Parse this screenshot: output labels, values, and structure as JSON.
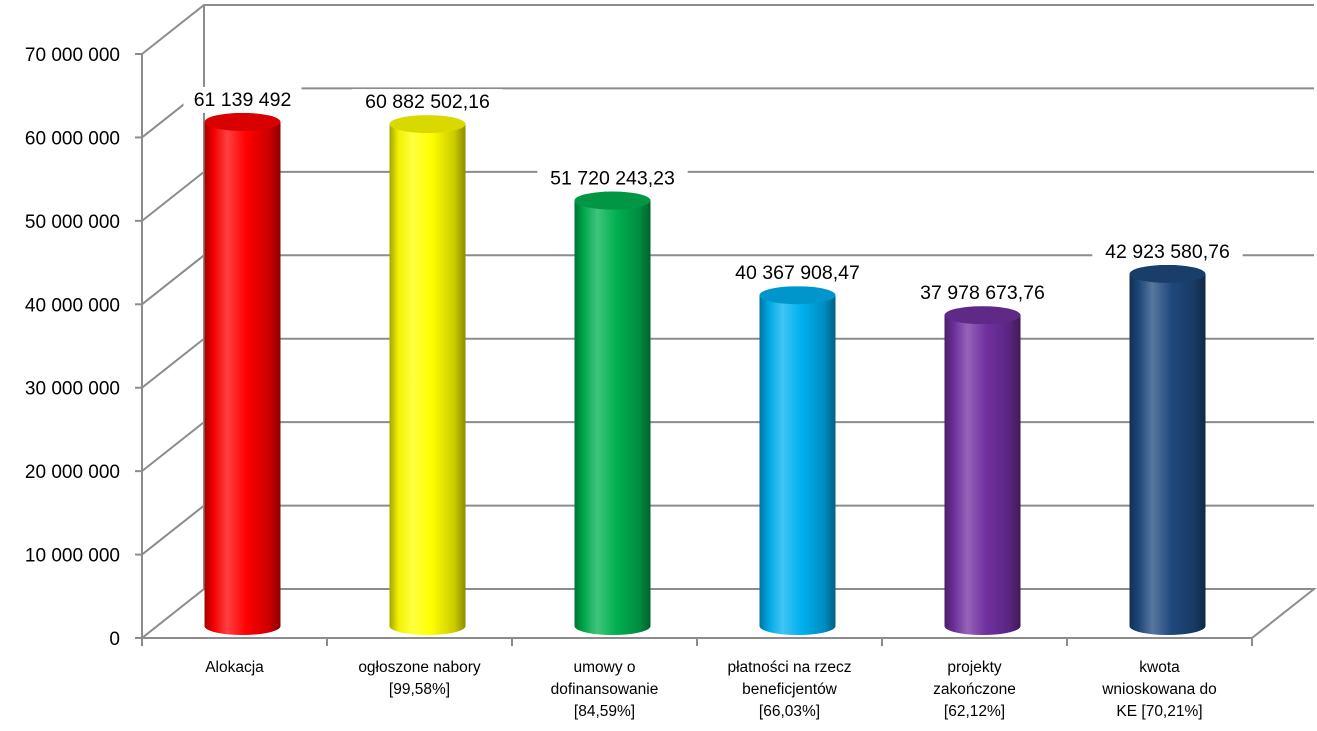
{
  "chart_data": {
    "type": "bar",
    "style": "3d-cylinder",
    "categories": [
      [
        "Alokacja"
      ],
      [
        "ogłoszone nabory",
        "[99,58%]"
      ],
      [
        "umowy o",
        "dofinansowanie",
        "[84,59%]"
      ],
      [
        "płatności na rzecz",
        "beneficjentów",
        "[66,03%]"
      ],
      [
        "projekty",
        "zakończone",
        "[62,12%]"
      ],
      [
        "kwota",
        "wnioskowana do",
        "KE [70,21%]"
      ]
    ],
    "values": [
      61139492,
      60882502.16,
      51720243.23,
      40367908.47,
      37978673.76,
      42923580.76
    ],
    "data_labels": [
      "61 139 492",
      "60 882 502,16",
      "51 720 243,23",
      "40 367 908,47",
      "37 978 673,76",
      "42 923 580,76"
    ],
    "colors": [
      "#ff0000",
      "#ffff00",
      "#00b050",
      "#00b0f0",
      "#7030a0",
      "#1f497d"
    ],
    "ylim": [
      0,
      70000000
    ],
    "yticks": [
      0,
      10000000,
      20000000,
      30000000,
      40000000,
      50000000,
      60000000,
      70000000
    ],
    "ytick_labels": [
      "0",
      "10 000 000",
      "20 000 000",
      "30 000 000",
      "40 000 000",
      "50 000 000",
      "60 000 000",
      "70 000 000"
    ],
    "title": "",
    "xlabel": "",
    "ylabel": "",
    "grid": true,
    "legend": "none"
  }
}
